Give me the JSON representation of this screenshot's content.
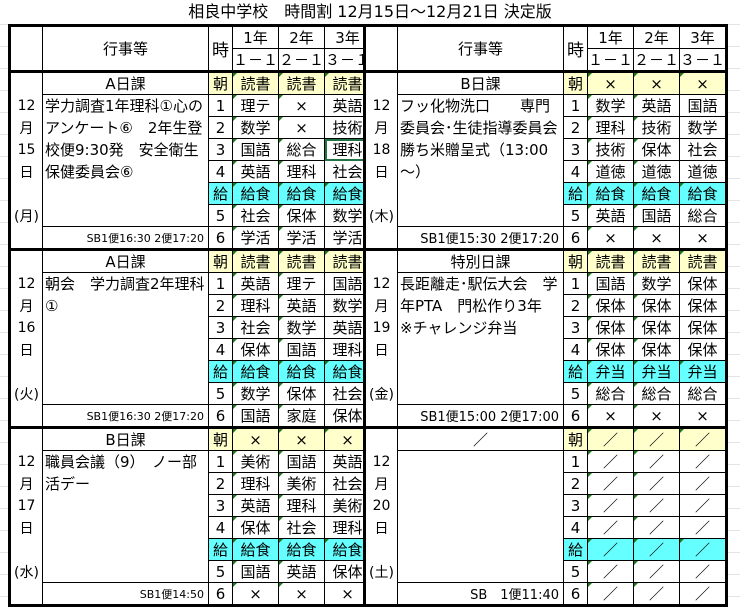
{
  "title": "相良中学校　時間割 12月15日～12月21日 決定版",
  "header": {
    "event_label": "行事等",
    "period_label": "時",
    "grades": [
      "1年",
      "2年",
      "3年"
    ],
    "classes": [
      "１－１",
      "２－１",
      "３－１"
    ]
  },
  "colors": {
    "morning_row": "#ffffcc",
    "lunch_row": "#66ffff",
    "selection": "#217346"
  },
  "selected_cell": {
    "day": "12月15日",
    "period": "3",
    "class": "３－１",
    "value": "理科"
  },
  "columns": [
    {
      "side": "left",
      "days": [
        {
          "date": [
            "12",
            "月",
            "15",
            "日",
            "",
            "(月)"
          ],
          "type": "A日課",
          "events": "学力調査1年理科①心のアンケート⑥　2年生登校便9:30発　安全衛生保健委員会⑥",
          "sb": "SB1便16:30 2便17:20",
          "rows": [
            {
              "p": "朝",
              "k": "m",
              "c": [
                "読書",
                "読書",
                "読書"
              ]
            },
            {
              "p": "1",
              "c": [
                "理テ",
                "×",
                "英語"
              ]
            },
            {
              "p": "2",
              "c": [
                "数学",
                "×",
                "技術"
              ]
            },
            {
              "p": "3",
              "c": [
                "国語",
                "総合",
                "理科"
              ]
            },
            {
              "p": "4",
              "c": [
                "英語",
                "理科",
                "社会"
              ]
            },
            {
              "p": "給",
              "k": "l",
              "c": [
                "給食",
                "給食",
                "給食"
              ]
            },
            {
              "p": "5",
              "c": [
                "社会",
                "保体",
                "数学"
              ]
            },
            {
              "p": "6",
              "c": [
                "学活",
                "学活",
                "学活"
              ]
            }
          ]
        },
        {
          "date": [
            "12",
            "月",
            "16",
            "日",
            "",
            "(火)"
          ],
          "type": "A日課",
          "events": "朝会　学力調査2年理科①",
          "sb": "SB1便16:30 2便17:20",
          "rows": [
            {
              "p": "朝",
              "k": "m",
              "c": [
                "読書",
                "読書",
                "読書"
              ]
            },
            {
              "p": "1",
              "c": [
                "英語",
                "理テ",
                "国語"
              ]
            },
            {
              "p": "2",
              "c": [
                "理科",
                "英語",
                "数学"
              ]
            },
            {
              "p": "3",
              "c": [
                "社会",
                "数学",
                "英語"
              ]
            },
            {
              "p": "4",
              "c": [
                "保体",
                "国語",
                "理科"
              ]
            },
            {
              "p": "給",
              "k": "l",
              "c": [
                "給食",
                "給食",
                "給食"
              ]
            },
            {
              "p": "5",
              "c": [
                "数学",
                "保体",
                "社会"
              ]
            },
            {
              "p": "6",
              "c": [
                "国語",
                "家庭",
                "保体"
              ]
            }
          ]
        },
        {
          "date": [
            "12",
            "月",
            "17",
            "日",
            "",
            "(水)"
          ],
          "type": "B日課",
          "events": "職員会議（9）　ノー部活デー",
          "sb": "SB1便14:50",
          "rows": [
            {
              "p": "朝",
              "k": "m",
              "c": [
                "×",
                "×",
                "×"
              ]
            },
            {
              "p": "1",
              "c": [
                "美術",
                "国語",
                "英語"
              ]
            },
            {
              "p": "2",
              "c": [
                "理科",
                "美術",
                "社会"
              ]
            },
            {
              "p": "3",
              "c": [
                "英語",
                "理科",
                "美術"
              ]
            },
            {
              "p": "4",
              "c": [
                "保体",
                "社会",
                "理科"
              ]
            },
            {
              "p": "給",
              "k": "l",
              "c": [
                "給食",
                "給食",
                "給食"
              ]
            },
            {
              "p": "5",
              "c": [
                "国語",
                "英語",
                "保体"
              ]
            },
            {
              "p": "6",
              "c": [
                "×",
                "×",
                "×"
              ]
            }
          ]
        }
      ]
    },
    {
      "side": "right",
      "days": [
        {
          "date": [
            "12",
            "月",
            "18",
            "日",
            "",
            "(木)"
          ],
          "type": "B日課",
          "events": "フッ化物洗口　　専門委員会･生徒指導委員会　勝ち米贈呈式（13:00～）",
          "sb": "SB1便15:30 2便17:20",
          "rows": [
            {
              "p": "朝",
              "k": "m",
              "c": [
                "×",
                "×",
                "×"
              ]
            },
            {
              "p": "1",
              "c": [
                "数学",
                "英語",
                "国語"
              ]
            },
            {
              "p": "2",
              "c": [
                "理科",
                "技術",
                "数学"
              ]
            },
            {
              "p": "3",
              "c": [
                "技術",
                "保体",
                "社会"
              ]
            },
            {
              "p": "4",
              "c": [
                "道徳",
                "道徳",
                "道徳"
              ]
            },
            {
              "p": "給",
              "k": "l",
              "c": [
                "給食",
                "給食",
                "給食"
              ]
            },
            {
              "p": "5",
              "c": [
                "英語",
                "国語",
                "総合"
              ]
            },
            {
              "p": "6",
              "c": [
                "×",
                "×",
                "×"
              ]
            }
          ]
        },
        {
          "date": [
            "12",
            "月",
            "19",
            "日",
            "",
            "(金)"
          ],
          "type": "特別日課",
          "events": "長距離走･駅伝大会　学年PTA　門松作り3年　※チャレンジ弁当",
          "sb": "SB1便15:00 2便17:00",
          "rows": [
            {
              "p": "朝",
              "k": "m",
              "c": [
                "読書",
                "読書",
                "読書"
              ]
            },
            {
              "p": "1",
              "c": [
                "国語",
                "数学",
                "保体"
              ]
            },
            {
              "p": "2",
              "c": [
                "保体",
                "保体",
                "保体"
              ]
            },
            {
              "p": "3",
              "c": [
                "保体",
                "保体",
                "保体"
              ]
            },
            {
              "p": "4",
              "c": [
                "保体",
                "保体",
                "保体"
              ]
            },
            {
              "p": "給",
              "k": "l",
              "c": [
                "弁当",
                "弁当",
                "弁当"
              ]
            },
            {
              "p": "5",
              "c": [
                "総合",
                "総合",
                "総合"
              ]
            },
            {
              "p": "6",
              "c": [
                "×",
                "×",
                "×"
              ]
            }
          ]
        },
        {
          "date": [
            "12",
            "月",
            "20",
            "日",
            "",
            "(土)"
          ],
          "type": "／",
          "events": "",
          "sb": "SB　1便11:40",
          "rows": [
            {
              "p": "朝",
              "k": "m",
              "c": [
                "／",
                "／",
                "／"
              ]
            },
            {
              "p": "1",
              "c": [
                "／",
                "／",
                "／"
              ]
            },
            {
              "p": "2",
              "c": [
                "／",
                "／",
                "／"
              ]
            },
            {
              "p": "3",
              "c": [
                "／",
                "／",
                "／"
              ]
            },
            {
              "p": "4",
              "c": [
                "／",
                "／",
                "／"
              ]
            },
            {
              "p": "給",
              "k": "l",
              "c": [
                "／",
                "／",
                "／"
              ]
            },
            {
              "p": "5",
              "c": [
                "／",
                "／",
                "／"
              ]
            },
            {
              "p": "6",
              "c": [
                "／",
                "／",
                "／"
              ]
            }
          ]
        }
      ]
    }
  ]
}
